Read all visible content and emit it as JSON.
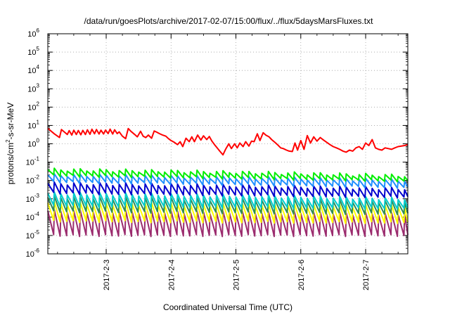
{
  "chart_data": {
    "type": "line",
    "title": "/data/run/goesPlots/archive/2017-02-07/15:00/flux/../flux/5daysMarsFluxes.txt",
    "xlabel": "Coordinated Universal Time (UTC)",
    "ylabel": {
      "prefix": "protons/cm",
      "sup": "2",
      "suffix": "-s-sr-MeV"
    },
    "y_scale": "log",
    "ylim_exp": [
      -6,
      6
    ],
    "y_tick_base": "10",
    "y_tick_exponents": [
      "-6",
      "-5",
      "-4",
      "-3",
      "-2",
      "-1",
      "0",
      "1",
      "2",
      "3",
      "4",
      "5",
      "6"
    ],
    "xlim_days": [
      2.1,
      7.65
    ],
    "x_tick_labels": [
      "2017-2-3",
      "2017-2-4",
      "2017-2-5",
      "2017-2-6",
      "2017-2-7"
    ],
    "x_tick_days": [
      3,
      4,
      5,
      6,
      7
    ],
    "grid": true,
    "legend": "none",
    "series": [
      {
        "color": "#ff0000",
        "x": [
          2.1,
          2.2,
          2.28,
          2.31,
          2.4,
          2.43,
          2.47,
          2.5,
          2.54,
          2.57,
          2.61,
          2.64,
          2.68,
          2.71,
          2.75,
          2.78,
          2.82,
          2.85,
          2.89,
          2.92,
          2.96,
          2.99,
          3.03,
          3.06,
          3.1,
          3.13,
          3.17,
          3.2,
          3.25,
          3.3,
          3.34,
          3.38,
          3.44,
          3.48,
          3.53,
          3.57,
          3.61,
          3.65,
          3.7,
          3.74,
          3.78,
          3.82,
          3.87,
          3.92,
          3.96,
          4.0,
          4.05,
          4.1,
          4.14,
          4.18,
          4.23,
          4.28,
          4.32,
          4.36,
          4.41,
          4.46,
          4.5,
          4.55,
          4.59,
          4.63,
          4.67,
          4.71,
          4.75,
          4.8,
          4.84,
          4.89,
          4.93,
          4.98,
          5.02,
          5.06,
          5.11,
          5.15,
          5.2,
          5.24,
          5.28,
          5.33,
          5.37,
          5.42,
          5.46,
          5.51,
          5.55,
          5.6,
          5.64,
          5.69,
          5.73,
          5.78,
          5.82,
          5.87,
          5.91,
          5.95,
          6.0,
          6.05,
          6.1,
          6.15,
          6.2,
          6.25,
          6.3,
          6.35,
          6.4,
          6.45,
          6.5,
          6.55,
          6.6,
          6.65,
          6.7,
          6.75,
          6.8,
          6.85,
          6.9,
          6.95,
          7.0,
          7.05,
          7.1,
          7.15,
          7.2,
          7.25,
          7.3,
          7.35,
          7.4,
          7.45,
          7.5,
          7.55,
          7.6,
          7.65
        ],
        "y": [
          7.0,
          3.5,
          2.2,
          6.0,
          3.2,
          5.2,
          3.0,
          5.5,
          3.2,
          5.3,
          3.1,
          5.4,
          3.2,
          5.8,
          3.3,
          6.2,
          3.5,
          6.0,
          3.4,
          5.5,
          3.4,
          5.6,
          3.6,
          6.3,
          3.4,
          5.8,
          3.6,
          4.5,
          2.6,
          1.9,
          6.8,
          4.8,
          3.2,
          2.4,
          4.8,
          2.6,
          2.2,
          3.0,
          2.0,
          5.0,
          4.3,
          3.6,
          3.0,
          2.6,
          1.9,
          1.5,
          1.2,
          0.9,
          1.3,
          0.7,
          2.0,
          1.3,
          2.4,
          1.3,
          3.0,
          1.6,
          2.7,
          1.7,
          2.5,
          1.4,
          0.9,
          0.6,
          0.4,
          0.25,
          0.5,
          1.0,
          0.55,
          1.0,
          0.6,
          1.1,
          0.7,
          1.3,
          0.75,
          1.4,
          1.3,
          3.5,
          1.5,
          4.0,
          3.0,
          2.4,
          1.7,
          1.2,
          0.9,
          0.6,
          0.55,
          0.45,
          0.4,
          0.38,
          1.1,
          0.45,
          1.5,
          0.5,
          2.8,
          1.1,
          2.4,
          1.4,
          2.2,
          1.6,
          1.2,
          0.9,
          0.7,
          0.6,
          0.5,
          0.4,
          0.35,
          0.45,
          0.4,
          0.6,
          0.7,
          0.5,
          1.1,
          0.8,
          1.7,
          0.6,
          0.5,
          0.45,
          0.6,
          0.55,
          0.5,
          0.6,
          0.7,
          0.75,
          0.8,
          0.9
        ]
      },
      {
        "color": "#00ee00",
        "sawtooth_period_days": 0.1,
        "peak_y": [
          0.04,
          0.018
        ],
        "trough_y": [
          0.018,
          0.009
        ]
      },
      {
        "color": "#1f8fff",
        "sawtooth_period_days": 0.1,
        "peak_y": [
          0.02,
          0.01
        ],
        "trough_y": [
          0.008,
          0.004
        ]
      },
      {
        "color": "#0000cd",
        "sawtooth_period_days": 0.1,
        "peak_y": [
          0.007,
          0.0035
        ],
        "trough_y": [
          0.002,
          0.0012
        ]
      },
      {
        "color": "#00cccc",
        "sawtooth_period_days": 0.1,
        "peak_y": [
          0.002,
          0.001
        ],
        "trough_y": [
          0.0004,
          0.0003
        ]
      },
      {
        "color": "#2e8b57",
        "sawtooth_period_days": 0.1,
        "peak_y": [
          0.0012,
          0.0007
        ],
        "trough_y": [
          0.0002,
          0.00015
        ]
      },
      {
        "color": "#ffff00",
        "sawtooth_period_days": 0.1,
        "peak_y": [
          0.0006,
          0.0004
        ],
        "trough_y": [
          6e-05,
          5e-05
        ]
      },
      {
        "color": "#9b2c6e",
        "sawtooth_period_days": 0.1,
        "peak_y": [
          0.00022,
          0.00015
        ],
        "trough_y": [
          1e-05,
          1e-05
        ]
      }
    ]
  }
}
